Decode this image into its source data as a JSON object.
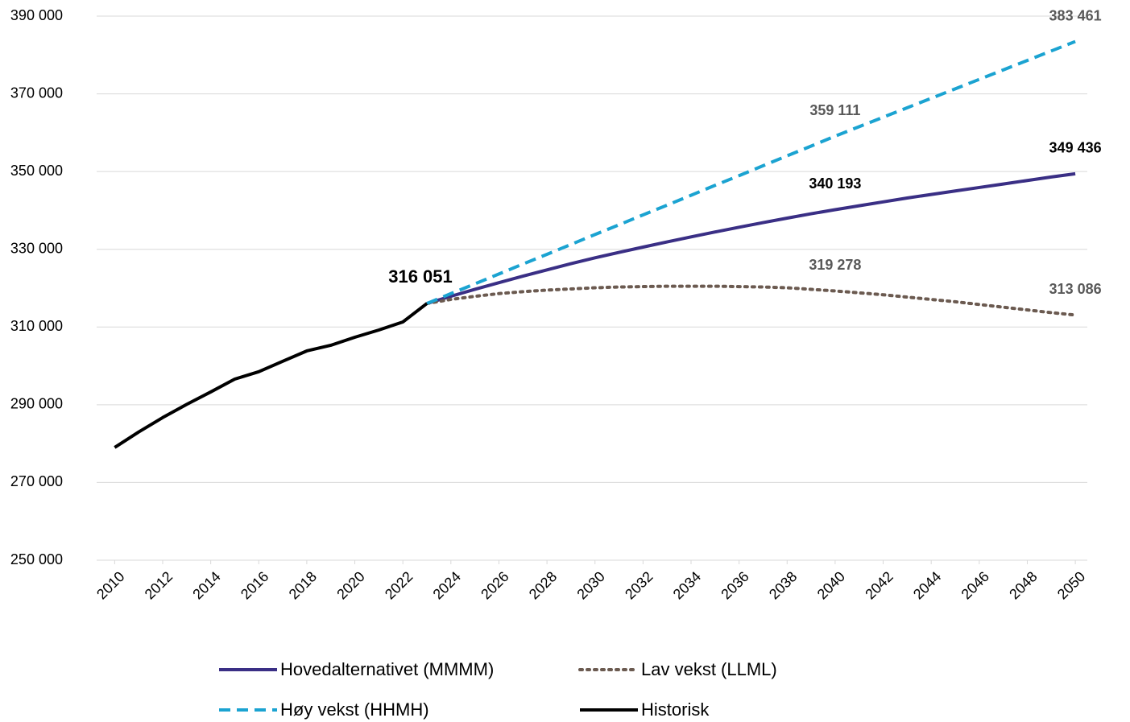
{
  "chart_data": {
    "type": "line",
    "x": [
      2010,
      2011,
      2012,
      2013,
      2014,
      2015,
      2016,
      2017,
      2018,
      2019,
      2020,
      2021,
      2022,
      2023,
      2024,
      2025,
      2026,
      2027,
      2028,
      2029,
      2030,
      2031,
      2032,
      2033,
      2034,
      2035,
      2036,
      2037,
      2038,
      2039,
      2040,
      2041,
      2042,
      2043,
      2044,
      2045,
      2046,
      2047,
      2048,
      2049,
      2050
    ],
    "xlim": [
      2009.25,
      2050.5
    ],
    "xticks": [
      2010,
      2012,
      2014,
      2016,
      2018,
      2020,
      2022,
      2024,
      2026,
      2028,
      2030,
      2032,
      2034,
      2036,
      2038,
      2040,
      2042,
      2044,
      2046,
      2048,
      2050
    ],
    "ylim": [
      250000,
      390000
    ],
    "yticks": [
      {
        "value": 250000,
        "label": "250 000"
      },
      {
        "value": 270000,
        "label": "270 000"
      },
      {
        "value": 290000,
        "label": "290 000"
      },
      {
        "value": 310000,
        "label": "310 000"
      },
      {
        "value": 330000,
        "label": "330 000"
      },
      {
        "value": 350000,
        "label": "350 000"
      },
      {
        "value": 370000,
        "label": "370 000"
      },
      {
        "value": 390000,
        "label": "390 000"
      }
    ],
    "grid": true,
    "series": [
      {
        "name": "Hovedalternativet (MMMM)",
        "color": "#3a2f85",
        "dash": "solid",
        "values": [
          null,
          null,
          null,
          null,
          null,
          null,
          null,
          null,
          null,
          null,
          null,
          null,
          null,
          316051,
          317900,
          319700,
          321400,
          323100,
          324700,
          326300,
          327800,
          329200,
          330565,
          331895,
          333190,
          334450,
          335675,
          336865,
          338020,
          339140,
          340193,
          341200,
          342200,
          343200,
          344100,
          345000,
          345900,
          346800,
          347700,
          348600,
          349436
        ],
        "value_labels": [
          null,
          null,
          null,
          null,
          null,
          null,
          null,
          null,
          null,
          null,
          null,
          null,
          null,
          null,
          null,
          null,
          null,
          null,
          null,
          null,
          null,
          null,
          null,
          null,
          null,
          null,
          null,
          null,
          null,
          null,
          "340 193",
          null,
          null,
          null,
          null,
          null,
          null,
          null,
          null,
          null,
          "349 436"
        ],
        "label_color": "#000000"
      },
      {
        "name": "Lav vekst (LLML)",
        "color": "#6b5a50",
        "dash": "dotted",
        "values": [
          null,
          null,
          null,
          null,
          null,
          null,
          null,
          null,
          null,
          null,
          null,
          null,
          null,
          316051,
          317100,
          317900,
          318600,
          319100,
          319500,
          319800,
          320100,
          320300,
          320400,
          320500,
          320500,
          320500,
          320400,
          320300,
          320100,
          319700,
          319278,
          318800,
          318300,
          317700,
          317100,
          316500,
          315800,
          315100,
          314400,
          313700,
          313086
        ],
        "value_labels": [
          null,
          null,
          null,
          null,
          null,
          null,
          null,
          null,
          null,
          null,
          null,
          null,
          null,
          null,
          null,
          null,
          null,
          null,
          null,
          null,
          null,
          null,
          null,
          null,
          null,
          null,
          null,
          null,
          null,
          null,
          "319 278",
          null,
          null,
          null,
          null,
          null,
          null,
          null,
          null,
          null,
          "313 086"
        ],
        "label_color": "#595959"
      },
      {
        "name": "Høy vekst (HHMH)",
        "color": "#1ba3d1",
        "dash": "dashed",
        "values": [
          null,
          null,
          null,
          null,
          null,
          null,
          null,
          null,
          null,
          null,
          null,
          null,
          null,
          316051,
          318600,
          321100,
          323650,
          326200,
          328700,
          331250,
          333800,
          336300,
          338850,
          341350,
          343900,
          346450,
          348950,
          351500,
          354050,
          356550,
          359111,
          361550,
          363980,
          366420,
          368850,
          371290,
          373720,
          376160,
          378590,
          381030,
          383461
        ],
        "value_labels": [
          null,
          null,
          null,
          null,
          null,
          null,
          null,
          null,
          null,
          null,
          null,
          null,
          null,
          null,
          null,
          null,
          null,
          null,
          null,
          null,
          null,
          null,
          null,
          null,
          null,
          null,
          null,
          null,
          null,
          null,
          "359 111",
          null,
          null,
          null,
          null,
          null,
          null,
          null,
          null,
          null,
          "383 461"
        ],
        "label_color": "#595959"
      },
      {
        "name": "Historisk",
        "color": "#000000",
        "dash": "solid",
        "values": [
          279000,
          283000,
          286700,
          290100,
          293300,
          296600,
          298500,
          301200,
          303850,
          305300,
          307370,
          309230,
          311300,
          316051,
          null,
          null,
          null,
          null,
          null,
          null,
          null,
          null,
          null,
          null,
          null,
          null,
          null,
          null,
          null,
          null,
          null,
          null,
          null,
          null,
          null,
          null,
          null,
          null,
          null,
          null,
          null
        ],
        "value_labels": [
          null,
          null,
          null,
          null,
          null,
          null,
          null,
          null,
          null,
          null,
          null,
          null,
          null,
          "316 051",
          null,
          null,
          null,
          null,
          null,
          null,
          null,
          null,
          null,
          null,
          null,
          null,
          null,
          null,
          null,
          null,
          null,
          null,
          null,
          null,
          null,
          null,
          null,
          null,
          null,
          null,
          null
        ],
        "label_color": "#000000"
      }
    ]
  }
}
